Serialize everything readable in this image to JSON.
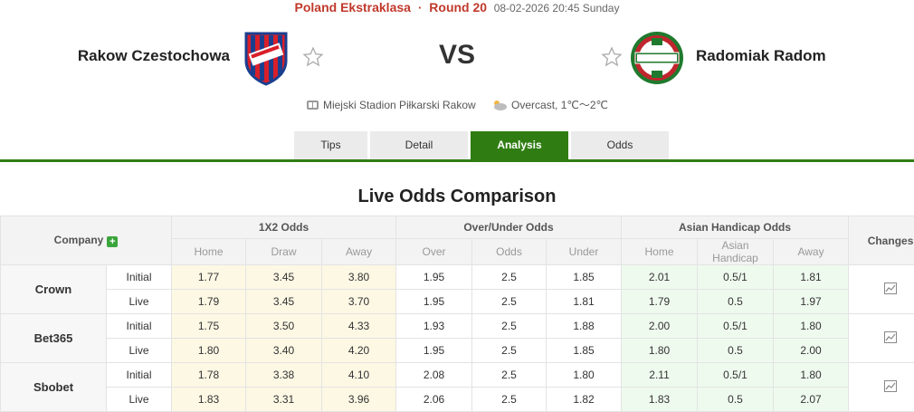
{
  "match": {
    "league": "Poland Ekstraklasa",
    "separator": "·",
    "round": "Round 20",
    "datetime": "08-02-2026 20:45 Sunday",
    "home": "Rakow Czestochowa",
    "away": "Radomiak Radom",
    "vs": "VS",
    "venue": "Miejski Stadion Piłkarski Rakow",
    "weather": "Overcast, 1℃～2℃"
  },
  "colors": {
    "accent": "#2f7d12",
    "league": "#c0392b"
  },
  "tabs": [
    {
      "label": "Tips"
    },
    {
      "label": "Detail"
    },
    {
      "label": "Analysis",
      "active": true
    },
    {
      "label": "Odds"
    }
  ],
  "section": {
    "title": "Live Odds Comparison"
  },
  "table": {
    "company_header": "Company",
    "changes_header": "Changes",
    "groups": [
      "1X2 Odds",
      "Over/Under Odds",
      "Asian Handicap Odds"
    ],
    "subheaders": [
      "Home",
      "Draw",
      "Away",
      "Over",
      "Odds",
      "Under",
      "Home",
      "Asian Handicap",
      "Away"
    ],
    "companies": [
      {
        "name": "Crown",
        "rows": [
          {
            "kind": "Initial",
            "values": [
              "1.77",
              "3.45",
              "3.80",
              "1.95",
              "2.5",
              "1.85",
              "2.01",
              "0.5/1",
              "1.81"
            ]
          },
          {
            "kind": "Live",
            "values": [
              "1.79",
              "3.45",
              "3.70",
              "1.95",
              "2.5",
              "1.81",
              "1.79",
              "0.5",
              "1.97"
            ]
          }
        ]
      },
      {
        "name": "Bet365",
        "rows": [
          {
            "kind": "Initial",
            "values": [
              "1.75",
              "3.50",
              "4.33",
              "1.93",
              "2.5",
              "1.88",
              "2.00",
              "0.5/1",
              "1.80"
            ]
          },
          {
            "kind": "Live",
            "values": [
              "1.80",
              "3.40",
              "4.20",
              "1.95",
              "2.5",
              "1.85",
              "1.80",
              "0.5",
              "2.00"
            ]
          }
        ]
      },
      {
        "name": "Sbobet",
        "rows": [
          {
            "kind": "Initial",
            "values": [
              "1.78",
              "3.38",
              "4.10",
              "2.08",
              "2.5",
              "1.80",
              "2.11",
              "0.5/1",
              "1.80"
            ]
          },
          {
            "kind": "Live",
            "values": [
              "1.83",
              "3.31",
              "3.96",
              "2.06",
              "2.5",
              "1.82",
              "1.83",
              "0.5",
              "2.07"
            ]
          }
        ]
      }
    ]
  }
}
